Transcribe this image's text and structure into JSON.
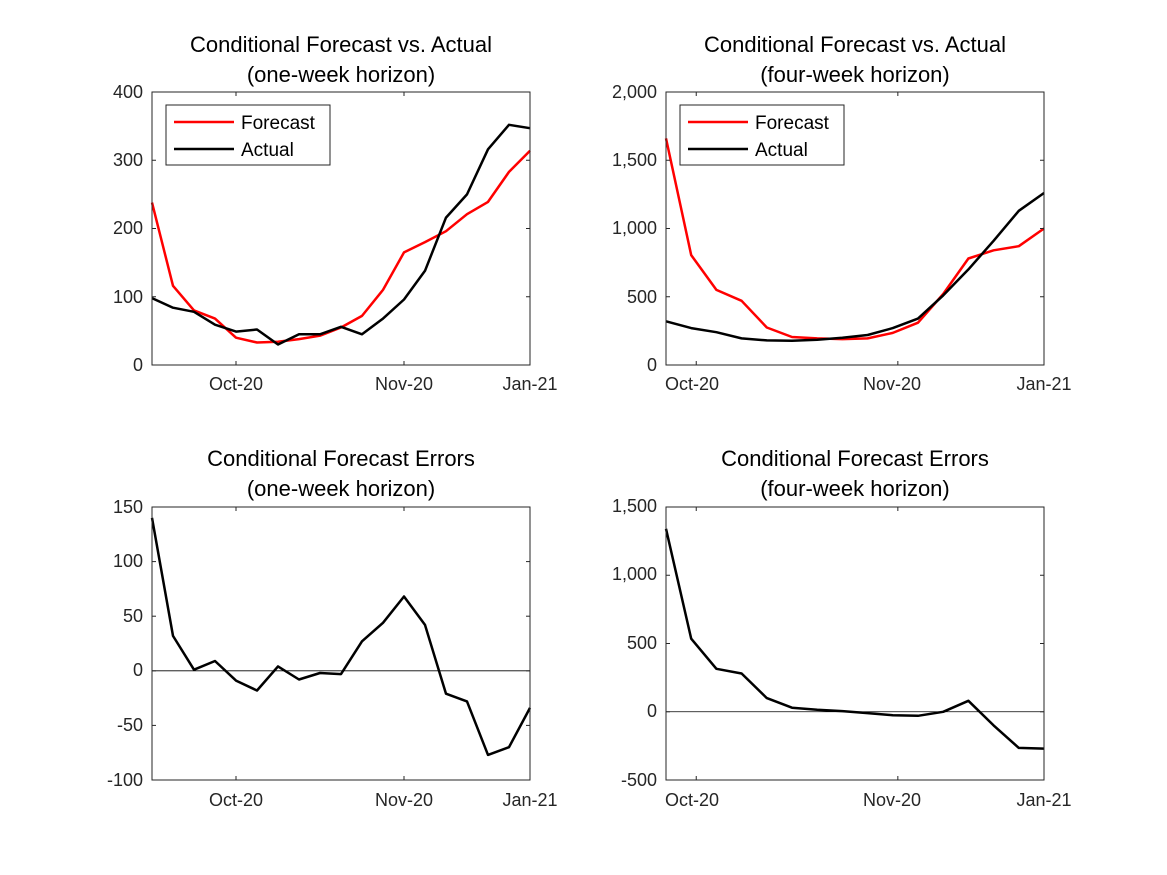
{
  "figure": {
    "panels": [
      {
        "title_lines": [
          "Conditional Forecast vs. Actual",
          "(one-week horizon)"
        ],
        "x_ticks": [
          "Oct-20",
          "Nov-20",
          "Jan-21"
        ],
        "y_ticks": [
          "0",
          "100",
          "200",
          "300",
          "400"
        ]
      },
      {
        "title_lines": [
          "Conditional Forecast vs. Actual",
          "(four-week horizon)"
        ],
        "x_ticks": [
          "Oct-20",
          "Nov-20",
          "Jan-21"
        ],
        "y_ticks": [
          "0",
          "500",
          "1,000",
          "1,500",
          "2,000"
        ]
      },
      {
        "title_lines": [
          "Conditional Forecast Errors",
          "(one-week horizon)"
        ],
        "x_ticks": [
          "Oct-20",
          "Nov-20",
          "Jan-21"
        ],
        "y_ticks": [
          "-100",
          "-50",
          "0",
          "50",
          "100",
          "150"
        ]
      },
      {
        "title_lines": [
          "Conditional Forecast Errors",
          "(four-week horizon)"
        ],
        "x_ticks": [
          "Oct-20",
          "Nov-20",
          "Jan-21"
        ],
        "y_ticks": [
          "-500",
          "0",
          "500",
          "1,000",
          "1,500"
        ]
      }
    ]
  },
  "chart_data": [
    {
      "type": "line",
      "title": "Conditional Forecast vs. Actual (one-week horizon)",
      "xlim": [
        0,
        18
      ],
      "ylim": [
        0,
        400
      ],
      "x_ticks": [
        {
          "x": 4,
          "label": "Oct-20"
        },
        {
          "x": 12,
          "label": "Nov-20"
        },
        {
          "x": 18,
          "label": "Jan-21"
        }
      ],
      "y_ticks": [
        {
          "y": 0,
          "label": "0"
        },
        {
          "y": 100,
          "label": "100"
        },
        {
          "y": 200,
          "label": "200"
        },
        {
          "y": 300,
          "label": "300"
        },
        {
          "y": 400,
          "label": "400"
        }
      ],
      "zero_line": false,
      "legend": {
        "position": "top-left",
        "entries": [
          "Forecast",
          "Actual"
        ]
      },
      "series": [
        {
          "name": "Forecast",
          "color": "#ff0000",
          "x": [
            0,
            1,
            2,
            3,
            4,
            5,
            6,
            7,
            8,
            9,
            10,
            11,
            12,
            13,
            14,
            15,
            16,
            17,
            18
          ],
          "y": [
            238,
            116,
            80,
            68,
            40,
            33,
            34,
            38,
            43,
            55,
            72,
            110,
            165,
            180,
            196,
            221,
            239,
            283,
            314
          ]
        },
        {
          "name": "Actual",
          "color": "#000000",
          "x": [
            0,
            1,
            2,
            3,
            4,
            5,
            6,
            7,
            8,
            9,
            10,
            11,
            12,
            13,
            14,
            15,
            16,
            17,
            18
          ],
          "y": [
            98,
            84,
            78,
            59,
            49,
            52,
            30,
            45,
            45,
            56,
            45,
            68,
            96,
            138,
            216,
            250,
            316,
            352,
            347
          ]
        }
      ]
    },
    {
      "type": "line",
      "title": "Conditional Forecast vs. Actual (four-week horizon)",
      "xlim": [
        0,
        15
      ],
      "ylim": [
        0,
        2000
      ],
      "x_ticks": [
        {
          "x": 1.2,
          "label": "Oct-20"
        },
        {
          "x": 9.2,
          "label": "Nov-20"
        },
        {
          "x": 15,
          "label": "Jan-21"
        }
      ],
      "y_ticks": [
        {
          "y": 0,
          "label": "0"
        },
        {
          "y": 500,
          "label": "500"
        },
        {
          "y": 1000,
          "label": "1,000"
        },
        {
          "y": 1500,
          "label": "1,500"
        },
        {
          "y": 2000,
          "label": "2,000"
        }
      ],
      "zero_line": false,
      "legend": {
        "position": "top-left",
        "entries": [
          "Forecast",
          "Actual"
        ]
      },
      "series": [
        {
          "name": "Forecast",
          "color": "#ff0000",
          "x": [
            0,
            1,
            2,
            3,
            4,
            5,
            6,
            7,
            8,
            9,
            10,
            11,
            12,
            13,
            14,
            15
          ],
          "y": [
            1660,
            805,
            550,
            470,
            275,
            205,
            195,
            190,
            195,
            235,
            310,
            520,
            780,
            840,
            870,
            1000
          ]
        },
        {
          "name": "Actual",
          "color": "#000000",
          "x": [
            0,
            1,
            2,
            3,
            4,
            5,
            6,
            7,
            8,
            9,
            10,
            11,
            12,
            13,
            14,
            15
          ],
          "y": [
            320,
            270,
            240,
            195,
            180,
            178,
            185,
            200,
            220,
            270,
            340,
            510,
            700,
            910,
            1130,
            1260
          ]
        }
      ]
    },
    {
      "type": "line",
      "title": "Conditional Forecast Errors (one-week horizon)",
      "xlim": [
        0,
        18
      ],
      "ylim": [
        -100,
        150
      ],
      "x_ticks": [
        {
          "x": 4,
          "label": "Oct-20"
        },
        {
          "x": 12,
          "label": "Nov-20"
        },
        {
          "x": 18,
          "label": "Jan-21"
        }
      ],
      "y_ticks": [
        {
          "y": -100,
          "label": "-100"
        },
        {
          "y": -50,
          "label": "-50"
        },
        {
          "y": 0,
          "label": "0"
        },
        {
          "y": 50,
          "label": "50"
        },
        {
          "y": 100,
          "label": "100"
        },
        {
          "y": 150,
          "label": "150"
        }
      ],
      "zero_line": true,
      "series": [
        {
          "color": "#000000",
          "x": [
            0,
            1,
            2,
            3,
            4,
            5,
            6,
            7,
            8,
            9,
            10,
            11,
            12,
            13,
            14,
            15,
            16,
            17,
            18
          ],
          "y": [
            140,
            32,
            1,
            9,
            -9,
            -18,
            4,
            -8,
            -2,
            -3,
            27,
            44,
            68,
            42,
            -21,
            -28,
            -77,
            -70,
            -34
          ]
        }
      ]
    },
    {
      "type": "line",
      "title": "Conditional Forecast Errors (four-week horizon)",
      "xlim": [
        0,
        15
      ],
      "ylim": [
        -500,
        1500
      ],
      "x_ticks": [
        {
          "x": 1.2,
          "label": "Oct-20"
        },
        {
          "x": 9.2,
          "label": "Nov-20"
        },
        {
          "x": 15,
          "label": "Jan-21"
        }
      ],
      "y_ticks": [
        {
          "y": -500,
          "label": "-500"
        },
        {
          "y": 0,
          "label": "0"
        },
        {
          "y": 500,
          "label": "500"
        },
        {
          "y": 1000,
          "label": "1,000"
        },
        {
          "y": 1500,
          "label": "1,500"
        }
      ],
      "zero_line": true,
      "series": [
        {
          "color": "#000000",
          "x": [
            0,
            1,
            2,
            3,
            4,
            5,
            6,
            7,
            8,
            9,
            10,
            11,
            12,
            13,
            14,
            15
          ],
          "y": [
            1340,
            535,
            315,
            280,
            100,
            30,
            15,
            5,
            -10,
            -25,
            -30,
            0,
            80,
            -100,
            -265,
            -270
          ]
        }
      ]
    }
  ]
}
